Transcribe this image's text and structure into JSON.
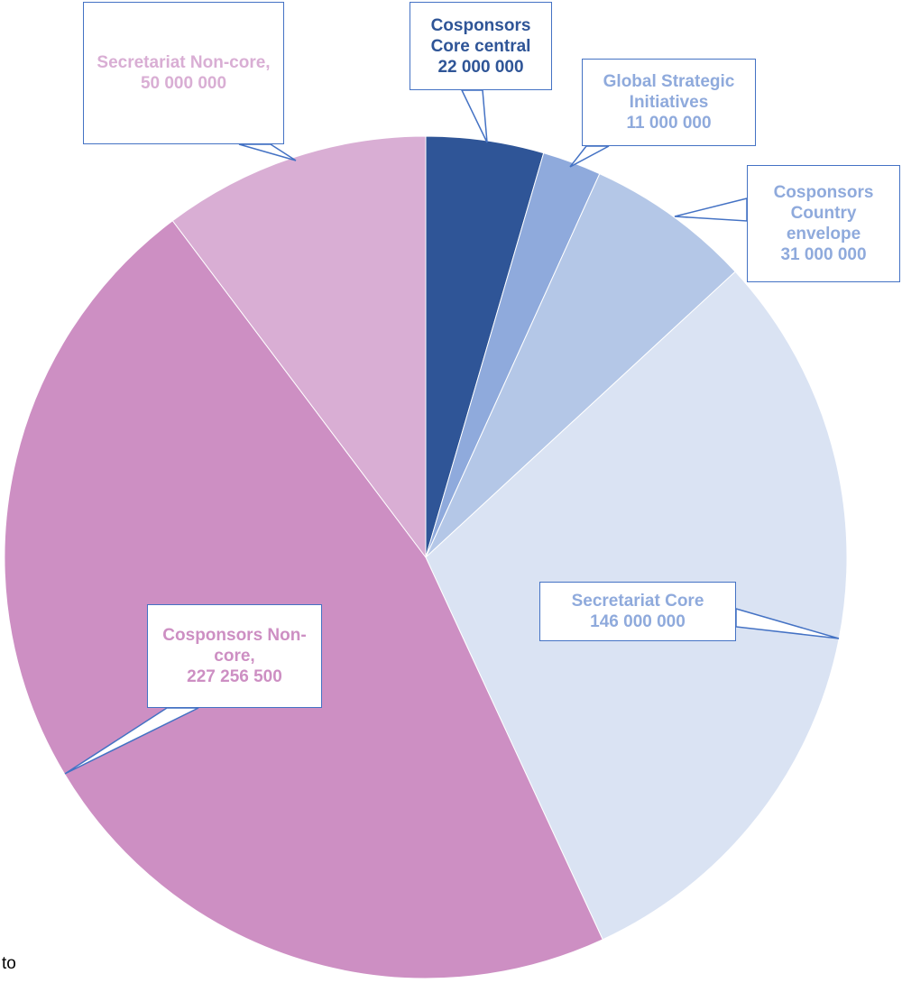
{
  "chart_data": {
    "type": "pie",
    "categories": [
      "Cosponsors Core central",
      "Global Strategic Initiatives",
      "Cosponsors Country envelope",
      "Secretariat Core",
      "Cosponsors Non-core,",
      "Secretariat Non-core,"
    ],
    "values": [
      22000000,
      11000000,
      31000000,
      146000000,
      227256500,
      50000000
    ],
    "value_labels": [
      "22 000 000",
      "11 000 000",
      "31 000 000",
      "146 000 000",
      "227 256 500",
      "50 000 000"
    ],
    "colors": [
      "#2f5597",
      "#8faadc",
      "#b4c7e7",
      "#dae3f3",
      "#cd8fc3",
      "#d9aed4"
    ],
    "label_colors": [
      "#2f5597",
      "#8faadc",
      "#8faadc",
      "#8faadc",
      "#cd8fc3",
      "#d9aed4"
    ],
    "annotations": [
      "to"
    ]
  }
}
